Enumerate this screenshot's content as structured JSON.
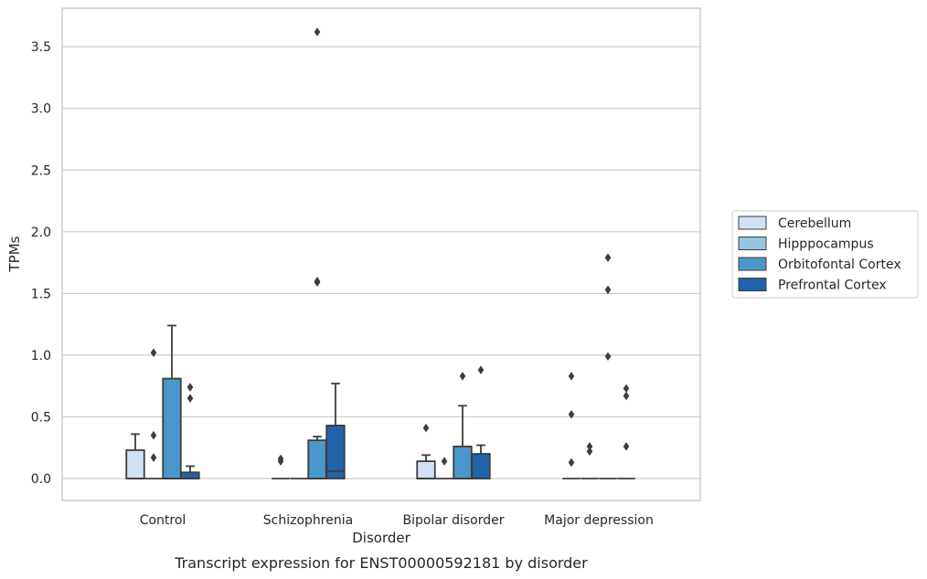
{
  "chart_data": {
    "type": "box",
    "caption": "Transcript expression for ENST00000592181 by disorder",
    "xlabel": "Disorder",
    "ylabel": "TPMs",
    "ylim": [
      -0.18,
      3.78
    ],
    "yticks": [
      0.0,
      0.5,
      1.0,
      1.5,
      2.0,
      2.5,
      3.0,
      3.5
    ],
    "ytick_labels": [
      "0.0",
      "0.5",
      "1.0",
      "1.5",
      "2.0",
      "2.5",
      "3.0",
      "3.5"
    ],
    "grid": "horizontal",
    "legend_position": "right",
    "categories": [
      "Control",
      "Schizophrenia",
      "Bipolar disorder",
      "Major depression"
    ],
    "series": [
      {
        "name": "Cerebellum",
        "color": "#d0e1f2",
        "boxes": [
          {
            "whislo": 0,
            "q1": 0,
            "med": 0,
            "q3": 0.23,
            "whishi": 0.36,
            "fliers": []
          },
          {
            "whislo": 0,
            "q1": 0,
            "med": 0,
            "q3": 0,
            "whishi": 0,
            "fliers": [
              0.14,
              0.16
            ]
          },
          {
            "whislo": 0,
            "q1": 0,
            "med": 0,
            "q3": 0.14,
            "whishi": 0.19,
            "fliers": [
              0.41
            ]
          },
          {
            "whislo": 0,
            "q1": 0,
            "med": 0,
            "q3": 0,
            "whishi": 0,
            "fliers": [
              0.13,
              0.52,
              0.83
            ]
          }
        ]
      },
      {
        "name": "Hipppocampus",
        "color": "#94c4df",
        "boxes": [
          {
            "whislo": 0,
            "q1": 0,
            "med": 0,
            "q3": 0,
            "whishi": 0,
            "fliers": [
              0.17,
              0.35,
              1.02
            ]
          },
          {
            "whislo": 0,
            "q1": 0,
            "med": 0,
            "q3": 0,
            "whishi": 0,
            "fliers": []
          },
          {
            "whislo": 0,
            "q1": 0,
            "med": 0,
            "q3": 0,
            "whishi": 0,
            "fliers": [
              0.14
            ]
          },
          {
            "whislo": 0,
            "q1": 0,
            "med": 0,
            "q3": 0,
            "whishi": 0,
            "fliers": [
              0.22,
              0.26
            ]
          }
        ]
      },
      {
        "name": "Orbitofontal Cortex",
        "color": "#4a98c9",
        "boxes": [
          {
            "whislo": 0,
            "q1": 0,
            "med": 0,
            "q3": 0.81,
            "whishi": 1.24,
            "fliers": []
          },
          {
            "whislo": 0,
            "q1": 0,
            "med": 0,
            "q3": 0.31,
            "whishi": 0.34,
            "fliers": [
              1.59,
              1.6,
              3.62
            ]
          },
          {
            "whislo": 0,
            "q1": 0,
            "med": 0,
            "q3": 0.26,
            "whishi": 0.59,
            "fliers": [
              0.83
            ]
          },
          {
            "whislo": 0,
            "q1": 0,
            "med": 0,
            "q3": 0,
            "whishi": 0,
            "fliers": [
              0.99,
              1.53,
              1.79
            ]
          }
        ]
      },
      {
        "name": "Prefrontal Cortex",
        "color": "#2163aa",
        "boxes": [
          {
            "whislo": 0,
            "q1": 0,
            "med": 0,
            "q3": 0.05,
            "whishi": 0.1,
            "fliers": [
              0.65,
              0.74
            ]
          },
          {
            "whislo": 0,
            "q1": 0,
            "med": 0.06,
            "q3": 0.43,
            "whishi": 0.77,
            "fliers": []
          },
          {
            "whislo": 0,
            "q1": 0,
            "med": 0,
            "q3": 0.2,
            "whishi": 0.27,
            "fliers": [
              0.88
            ]
          },
          {
            "whislo": 0,
            "q1": 0,
            "med": 0,
            "q3": 0,
            "whishi": 0,
            "fliers": [
              0.26,
              0.67,
              0.73
            ]
          }
        ]
      }
    ]
  }
}
